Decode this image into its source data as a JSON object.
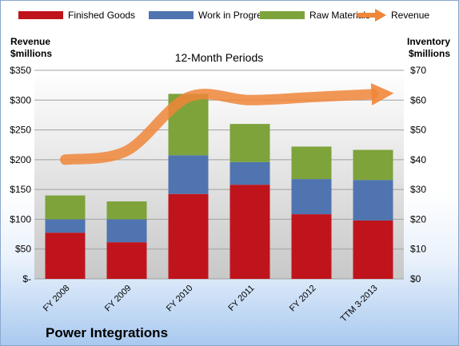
{
  "chart_data": {
    "type": "bar",
    "stacked": true,
    "title": "",
    "subtitle": "12-Month Periods",
    "brand": "Power Integrations",
    "categories": [
      "FY 2008",
      "FY 2009",
      "FY 2010",
      "FY 2011",
      "FY 2012",
      "TTM 3-2013"
    ],
    "series": [
      {
        "name": "Finished Goods",
        "axis": "right",
        "color": "#c0141c",
        "values": [
          15.5,
          12.3,
          28.5,
          31.6,
          21.7,
          19.6
        ]
      },
      {
        "name": "Work in Progress",
        "axis": "right",
        "color": "#4f74b0",
        "values": [
          4.5,
          7.7,
          13,
          7.6,
          11.8,
          13.6
        ]
      },
      {
        "name": "Raw Materials",
        "axis": "right",
        "color": "#7da33a",
        "values": [
          8,
          6,
          20.6,
          12.8,
          10.9,
          10.1
        ]
      }
    ],
    "line_series": {
      "name": "Revenue",
      "axis": "left",
      "color": "#f0863a",
      "values": [
        200,
        215,
        305,
        300,
        305,
        310
      ]
    },
    "ylabel_left": "Revenue\n$millions",
    "ylabel_right": "Inventory\n$millions",
    "ylim_left": [
      0,
      350
    ],
    "ylim_right": [
      0,
      70
    ],
    "yticks_left": [
      "$-",
      "$50",
      "$100",
      "$150",
      "$200",
      "$250",
      "$300",
      "$350"
    ],
    "yticks_right": [
      "$0",
      "$10",
      "$20",
      "$30",
      "$40",
      "$50",
      "$60",
      "$70"
    ],
    "grid": true,
    "legend_position": "top"
  }
}
